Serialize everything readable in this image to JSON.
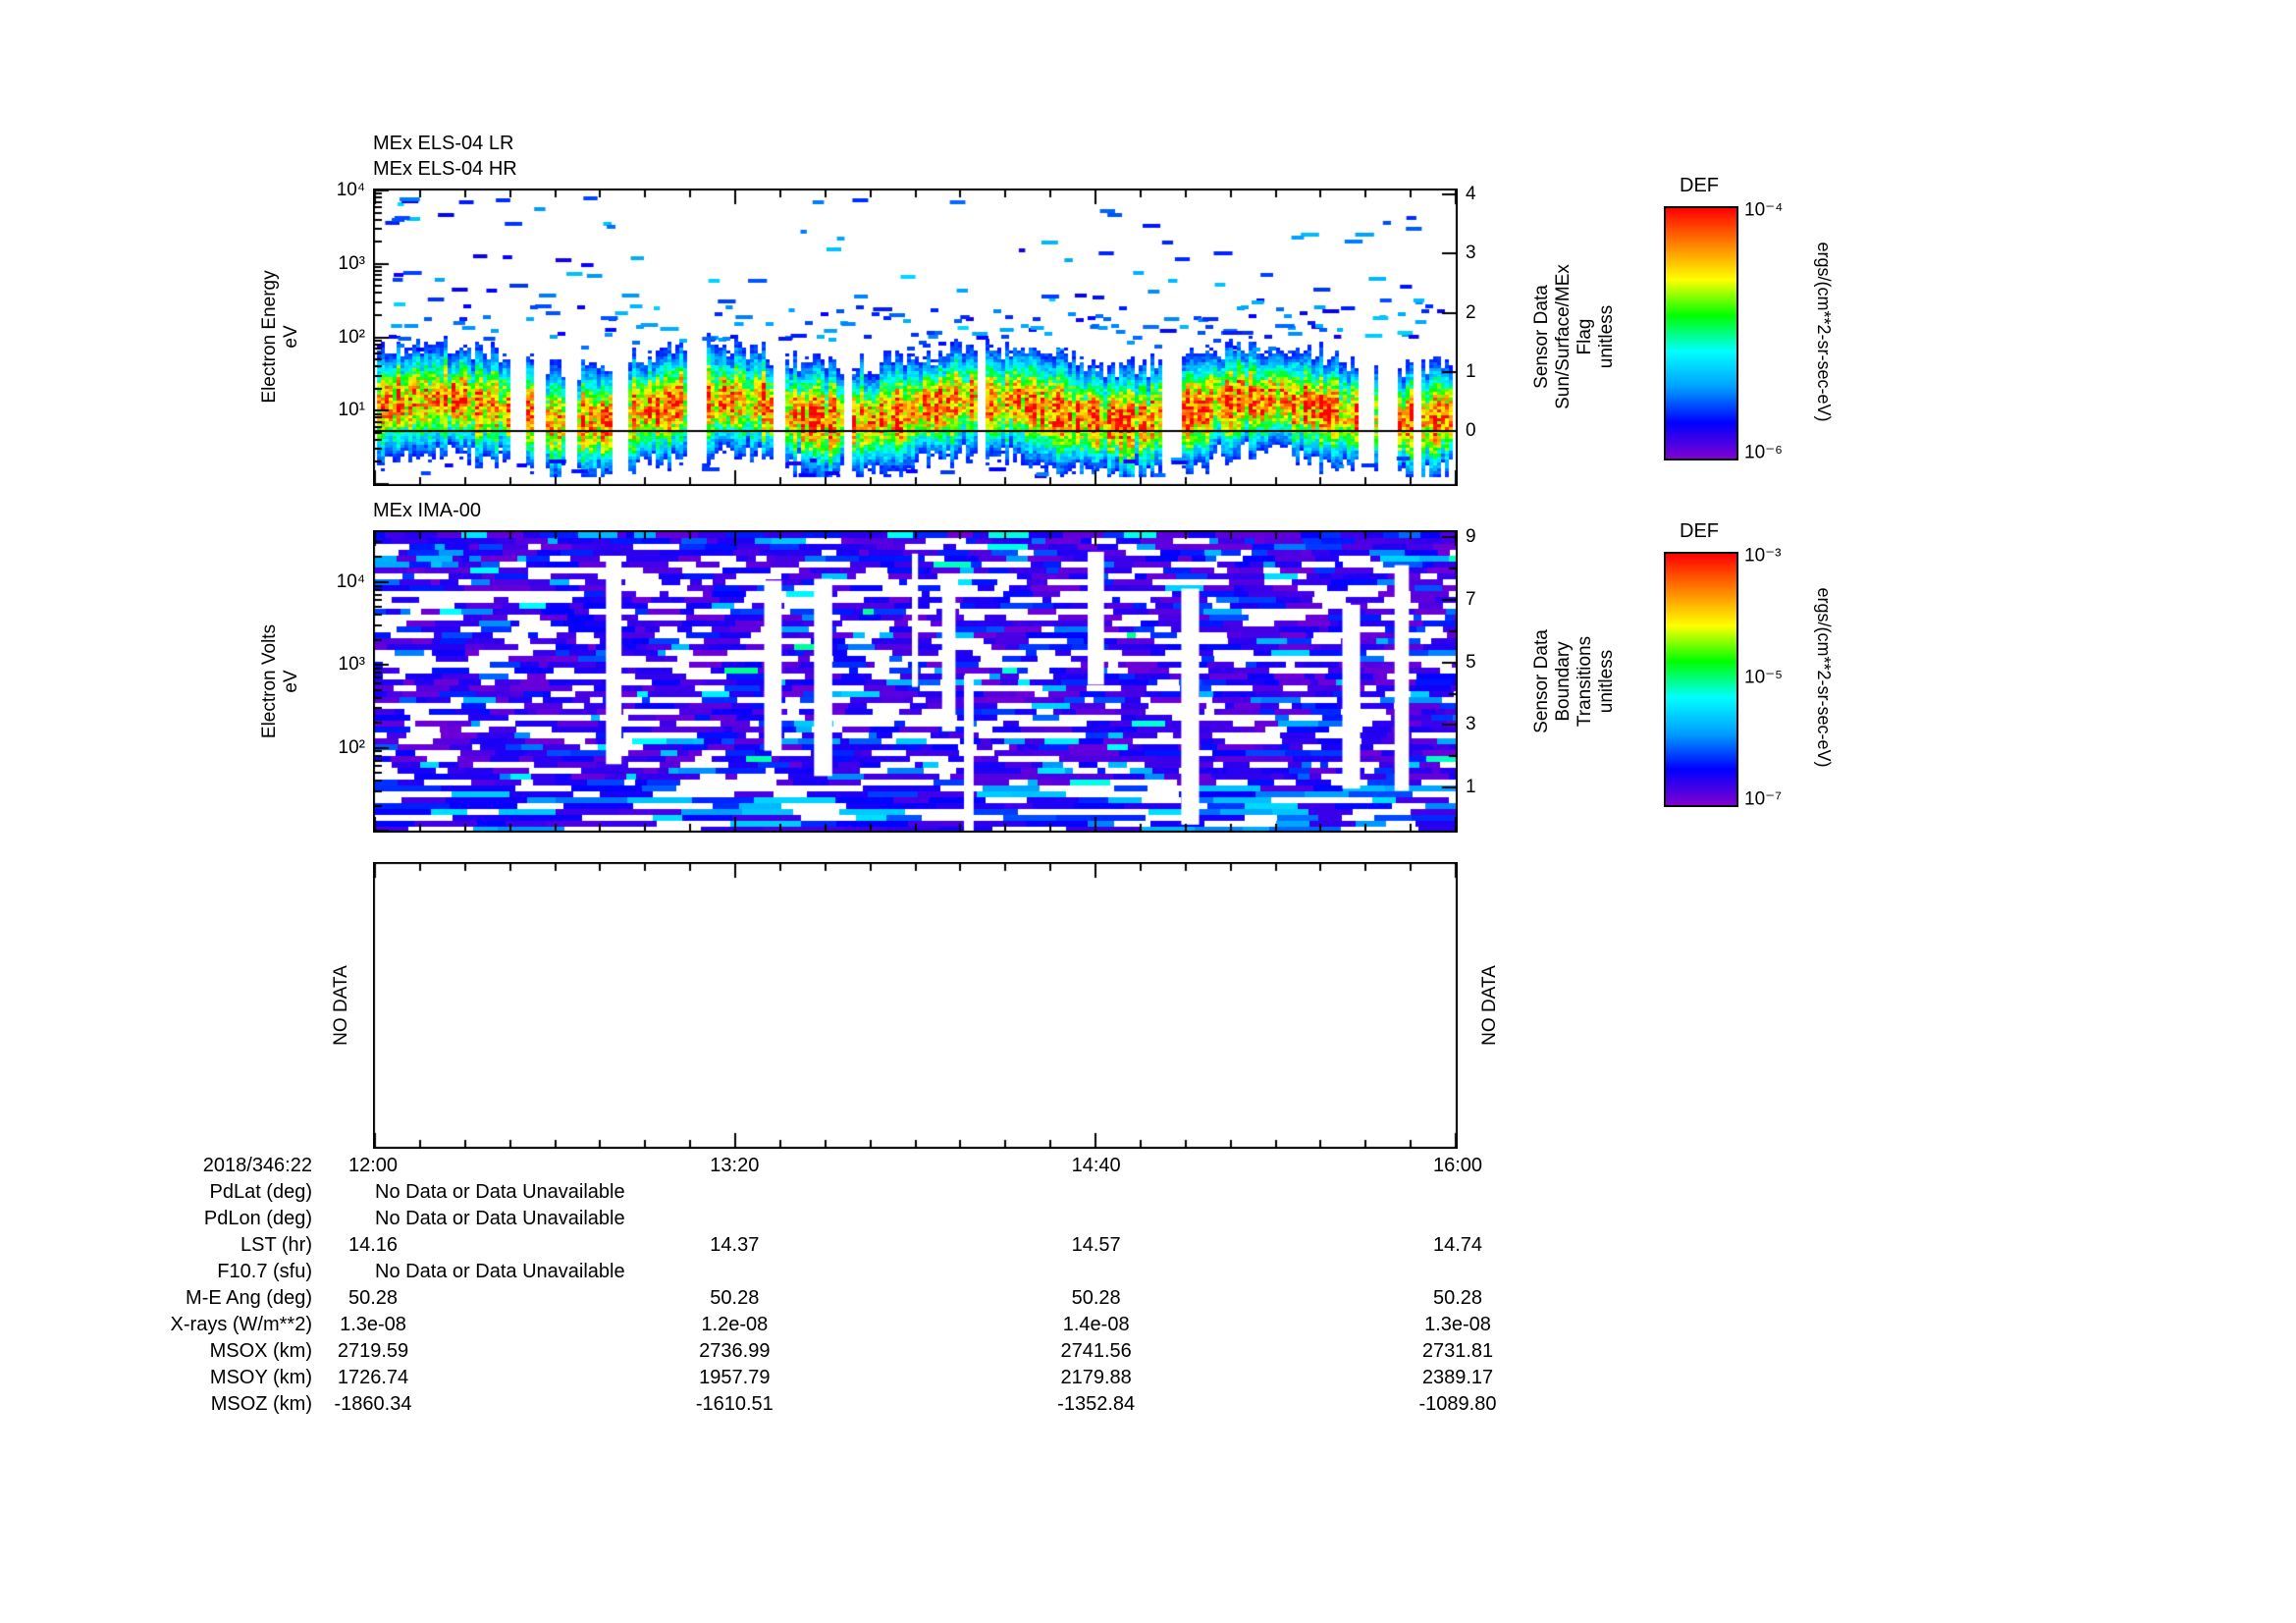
{
  "colors": {
    "frame": "#000000",
    "background": "#ffffff",
    "colormap": [
      "#8000d0",
      "#0000ff",
      "#00a0ff",
      "#00ffff",
      "#00ff00",
      "#ffff00",
      "#ff8000",
      "#ff0000"
    ]
  },
  "els_panel": {
    "title_line1": "MEx ELS-04 LR",
    "title_line2": "MEx ELS-04 HR",
    "ylabel_line1": "Electron Energy",
    "ylabel_line2": "eV",
    "ytick_labels": [
      "10⁴",
      "10³",
      "10²",
      "10¹"
    ],
    "right_axis": {
      "lines": [
        "Sensor Data",
        "Sun/Surface/MEx",
        "Flag",
        "unitless"
      ],
      "tick_labels": [
        "4",
        "3",
        "2",
        "1",
        "0"
      ]
    },
    "colorbar": {
      "title": "DEF",
      "top_label": "10⁻⁴",
      "bottom_label": "10⁻⁶",
      "units": "ergs/(cm**2-sr-sec-eV)"
    }
  },
  "ima_panel": {
    "title": "MEx IMA-00",
    "ylabel_line1": "Electron Volts",
    "ylabel_line2": "eV",
    "ytick_labels": [
      "10⁴",
      "10³",
      "10²"
    ],
    "right_axis": {
      "lines": [
        "Sensor Data",
        "Boundary",
        "Transitions",
        "unitless"
      ],
      "tick_labels": [
        "9",
        "7",
        "5",
        "3",
        "1"
      ]
    },
    "colorbar": {
      "title": "DEF",
      "top_label": "10⁻³",
      "mid_label": "10⁻⁵",
      "bottom_label": "10⁻⁷",
      "units": "ergs/(cm**2-sr-sec-eV)"
    }
  },
  "nodata_panel": {
    "left_label": "NO DATA",
    "right_label": "NO DATA"
  },
  "time_axis": {
    "date_label": "2018/346:22",
    "tick_labels": [
      "12:00",
      "13:20",
      "14:40",
      "16:00"
    ]
  },
  "chart_data": [
    {
      "type": "heatmap",
      "panel": "top",
      "title": "MEx ELS-04 LR / MEx ELS-04 HR",
      "x_axis": {
        "start_label": "2018/346:22 12:00",
        "ticks": [
          "12:00",
          "13:20",
          "14:40",
          "16:00"
        ],
        "minor_tick_interval_min": 10
      },
      "y_axis": {
        "label": "Electron Energy (eV)",
        "scale": "log",
        "range": [
          1,
          10000
        ],
        "tick_values": [
          10,
          100,
          1000,
          10000
        ]
      },
      "color_axis": {
        "label": "DEF",
        "units": "ergs/(cm**2-sr-sec-eV)",
        "scale": "log",
        "range": [
          1e-06,
          0.0001
        ]
      },
      "right_axis": {
        "label": "Sensor Data Sun/Surface/MEx Flag (unitless)",
        "range": [
          0,
          4
        ],
        "line_value": 0
      },
      "content_summary": "Continuous intense electron flux band between ~3 and ~60 eV, peaking near 1e-4 (red/orange) around 10 eV, with intermittent white gaps; scattered weak blue patches (~1e-6) from 100 eV up to 10 keV; black sensor-flag line overplotted constant at 0."
    },
    {
      "type": "heatmap",
      "panel": "middle",
      "title": "MEx IMA-00",
      "x_axis": {
        "ticks": [
          "12:00",
          "13:20",
          "14:40",
          "16:00"
        ],
        "minor_tick_interval_min": 10
      },
      "y_axis": {
        "label": "Electron Volts (eV)",
        "scale": "log",
        "range": [
          10,
          40000
        ],
        "tick_values": [
          100,
          1000,
          10000
        ]
      },
      "color_axis": {
        "label": "DEF",
        "units": "ergs/(cm**2-sr-sec-eV)",
        "scale": "log",
        "range": [
          1e-07,
          0.001
        ]
      },
      "right_axis": {
        "label": "Sensor Data Boundary Transitions (unitless)",
        "range": [
          1,
          9
        ]
      },
      "content_summary": "Patchy weak ion flux (mostly 1e-7 to 1e-6; purple, indigo and blue blocks with occasional cyan) across all energies, with frequent white data gaps; larger cyan/blue blocks at lowest energies."
    },
    {
      "type": "heatmap",
      "panel": "bottom",
      "title": "",
      "status": "NO DATA"
    },
    {
      "type": "table",
      "panel": "ancillary",
      "time_ticks": [
        "12:00",
        "13:20",
        "14:40",
        "16:00"
      ],
      "rows": [
        {
          "label": "PdLat (deg)",
          "type": "nodata",
          "text": "No Data or Data Unavailable"
        },
        {
          "label": "PdLon (deg)",
          "type": "nodata",
          "text": "No Data or Data Unavailable"
        },
        {
          "label": "LST (hr)",
          "type": "values",
          "values": [
            "14.16",
            "14.37",
            "14.57",
            "14.74"
          ]
        },
        {
          "label": "F10.7 (sfu)",
          "type": "nodata",
          "text": "No Data or Data Unavailable"
        },
        {
          "label": "M-E Ang (deg)",
          "type": "values",
          "values": [
            "50.28",
            "50.28",
            "50.28",
            "50.28"
          ]
        },
        {
          "label": "X-rays (W/m**2)",
          "type": "values",
          "values": [
            "1.3e-08",
            "1.2e-08",
            "1.4e-08",
            "1.3e-08"
          ]
        },
        {
          "label": "MSOX (km)",
          "type": "values",
          "values": [
            "2719.59",
            "2736.99",
            "2741.56",
            "2731.81"
          ]
        },
        {
          "label": "MSOY (km)",
          "type": "values",
          "values": [
            "1726.74",
            "1957.79",
            "2179.88",
            "2389.17"
          ]
        },
        {
          "label": "MSOZ (km)",
          "type": "values",
          "values": [
            "-1860.34",
            "-1610.51",
            "-1352.84",
            "-1089.80"
          ]
        }
      ]
    }
  ]
}
